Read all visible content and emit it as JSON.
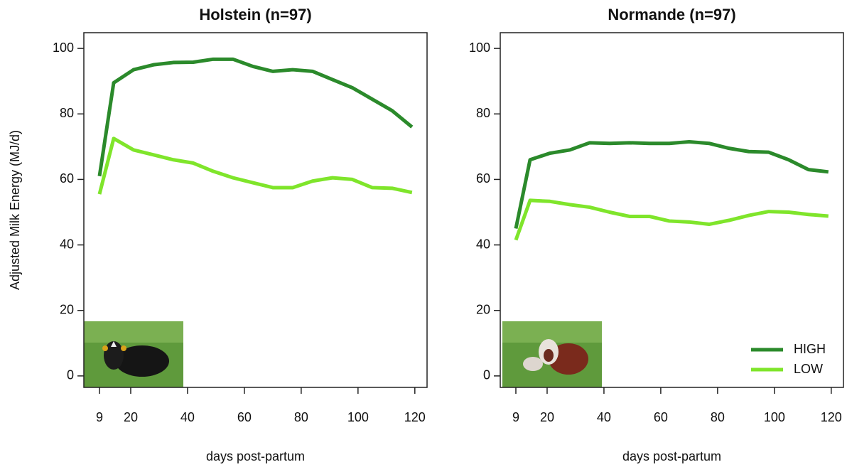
{
  "chart_data": [
    {
      "type": "line",
      "title": "Holstein (n=97)",
      "y_label": "Adjusted Milk Energy (MJ/d)",
      "x_label": "days post-partum",
      "x": [
        9,
        14,
        21,
        28,
        35,
        42,
        49,
        56,
        63,
        70,
        77,
        84,
        91,
        98,
        105,
        112,
        119
      ],
      "xlim": [
        3.5,
        124.3
      ],
      "ylim": [
        -3.5,
        104.8
      ],
      "xticks": [
        9,
        20,
        40,
        60,
        80,
        100,
        120
      ],
      "yticks": [
        0,
        20,
        40,
        60,
        80,
        100
      ],
      "series": [
        {
          "color": "#2b8a2b",
          "values": [
            61,
            89.5,
            93.5,
            95,
            95.7,
            95.8,
            96.7,
            96.7,
            94.5,
            93,
            93.5,
            93,
            90.5,
            88,
            84.5,
            81,
            76
          ]
        },
        {
          "color": "#7fe52b",
          "values": [
            55.5,
            72.5,
            69,
            67.5,
            66,
            65,
            62.5,
            60.5,
            59,
            57.5,
            57.5,
            59.5,
            60.5,
            60,
            57.5,
            57.3,
            56
          ]
        }
      ]
    },
    {
      "type": "line",
      "title": "Normande (n=97)",
      "x_label": "days post-partum",
      "x": [
        9,
        14,
        21,
        28,
        35,
        42,
        49,
        56,
        63,
        70,
        77,
        84,
        91,
        98,
        105,
        112,
        119
      ],
      "xlim": [
        3.5,
        124.3
      ],
      "ylim": [
        -3.5,
        104.8
      ],
      "xticks": [
        9,
        20,
        40,
        60,
        80,
        100,
        120
      ],
      "yticks": [
        0,
        20,
        40,
        60,
        80,
        100
      ],
      "legend": "bottom-right",
      "series": [
        {
          "name": "HIGH",
          "color": "#2b8a2b",
          "values": [
            45,
            66,
            68,
            69,
            71.2,
            71,
            71.2,
            71,
            71,
            71.5,
            71,
            69.5,
            68.5,
            68.3,
            66,
            63,
            62.3
          ]
        },
        {
          "name": "LOW",
          "color": "#7fe52b",
          "values": [
            41.5,
            53.6,
            53.3,
            52.3,
            51.5,
            50,
            48.7,
            48.7,
            47.3,
            47,
            46.3,
            47.5,
            49,
            50.2,
            50,
            49.3,
            48.8
          ]
        }
      ]
    }
  ]
}
